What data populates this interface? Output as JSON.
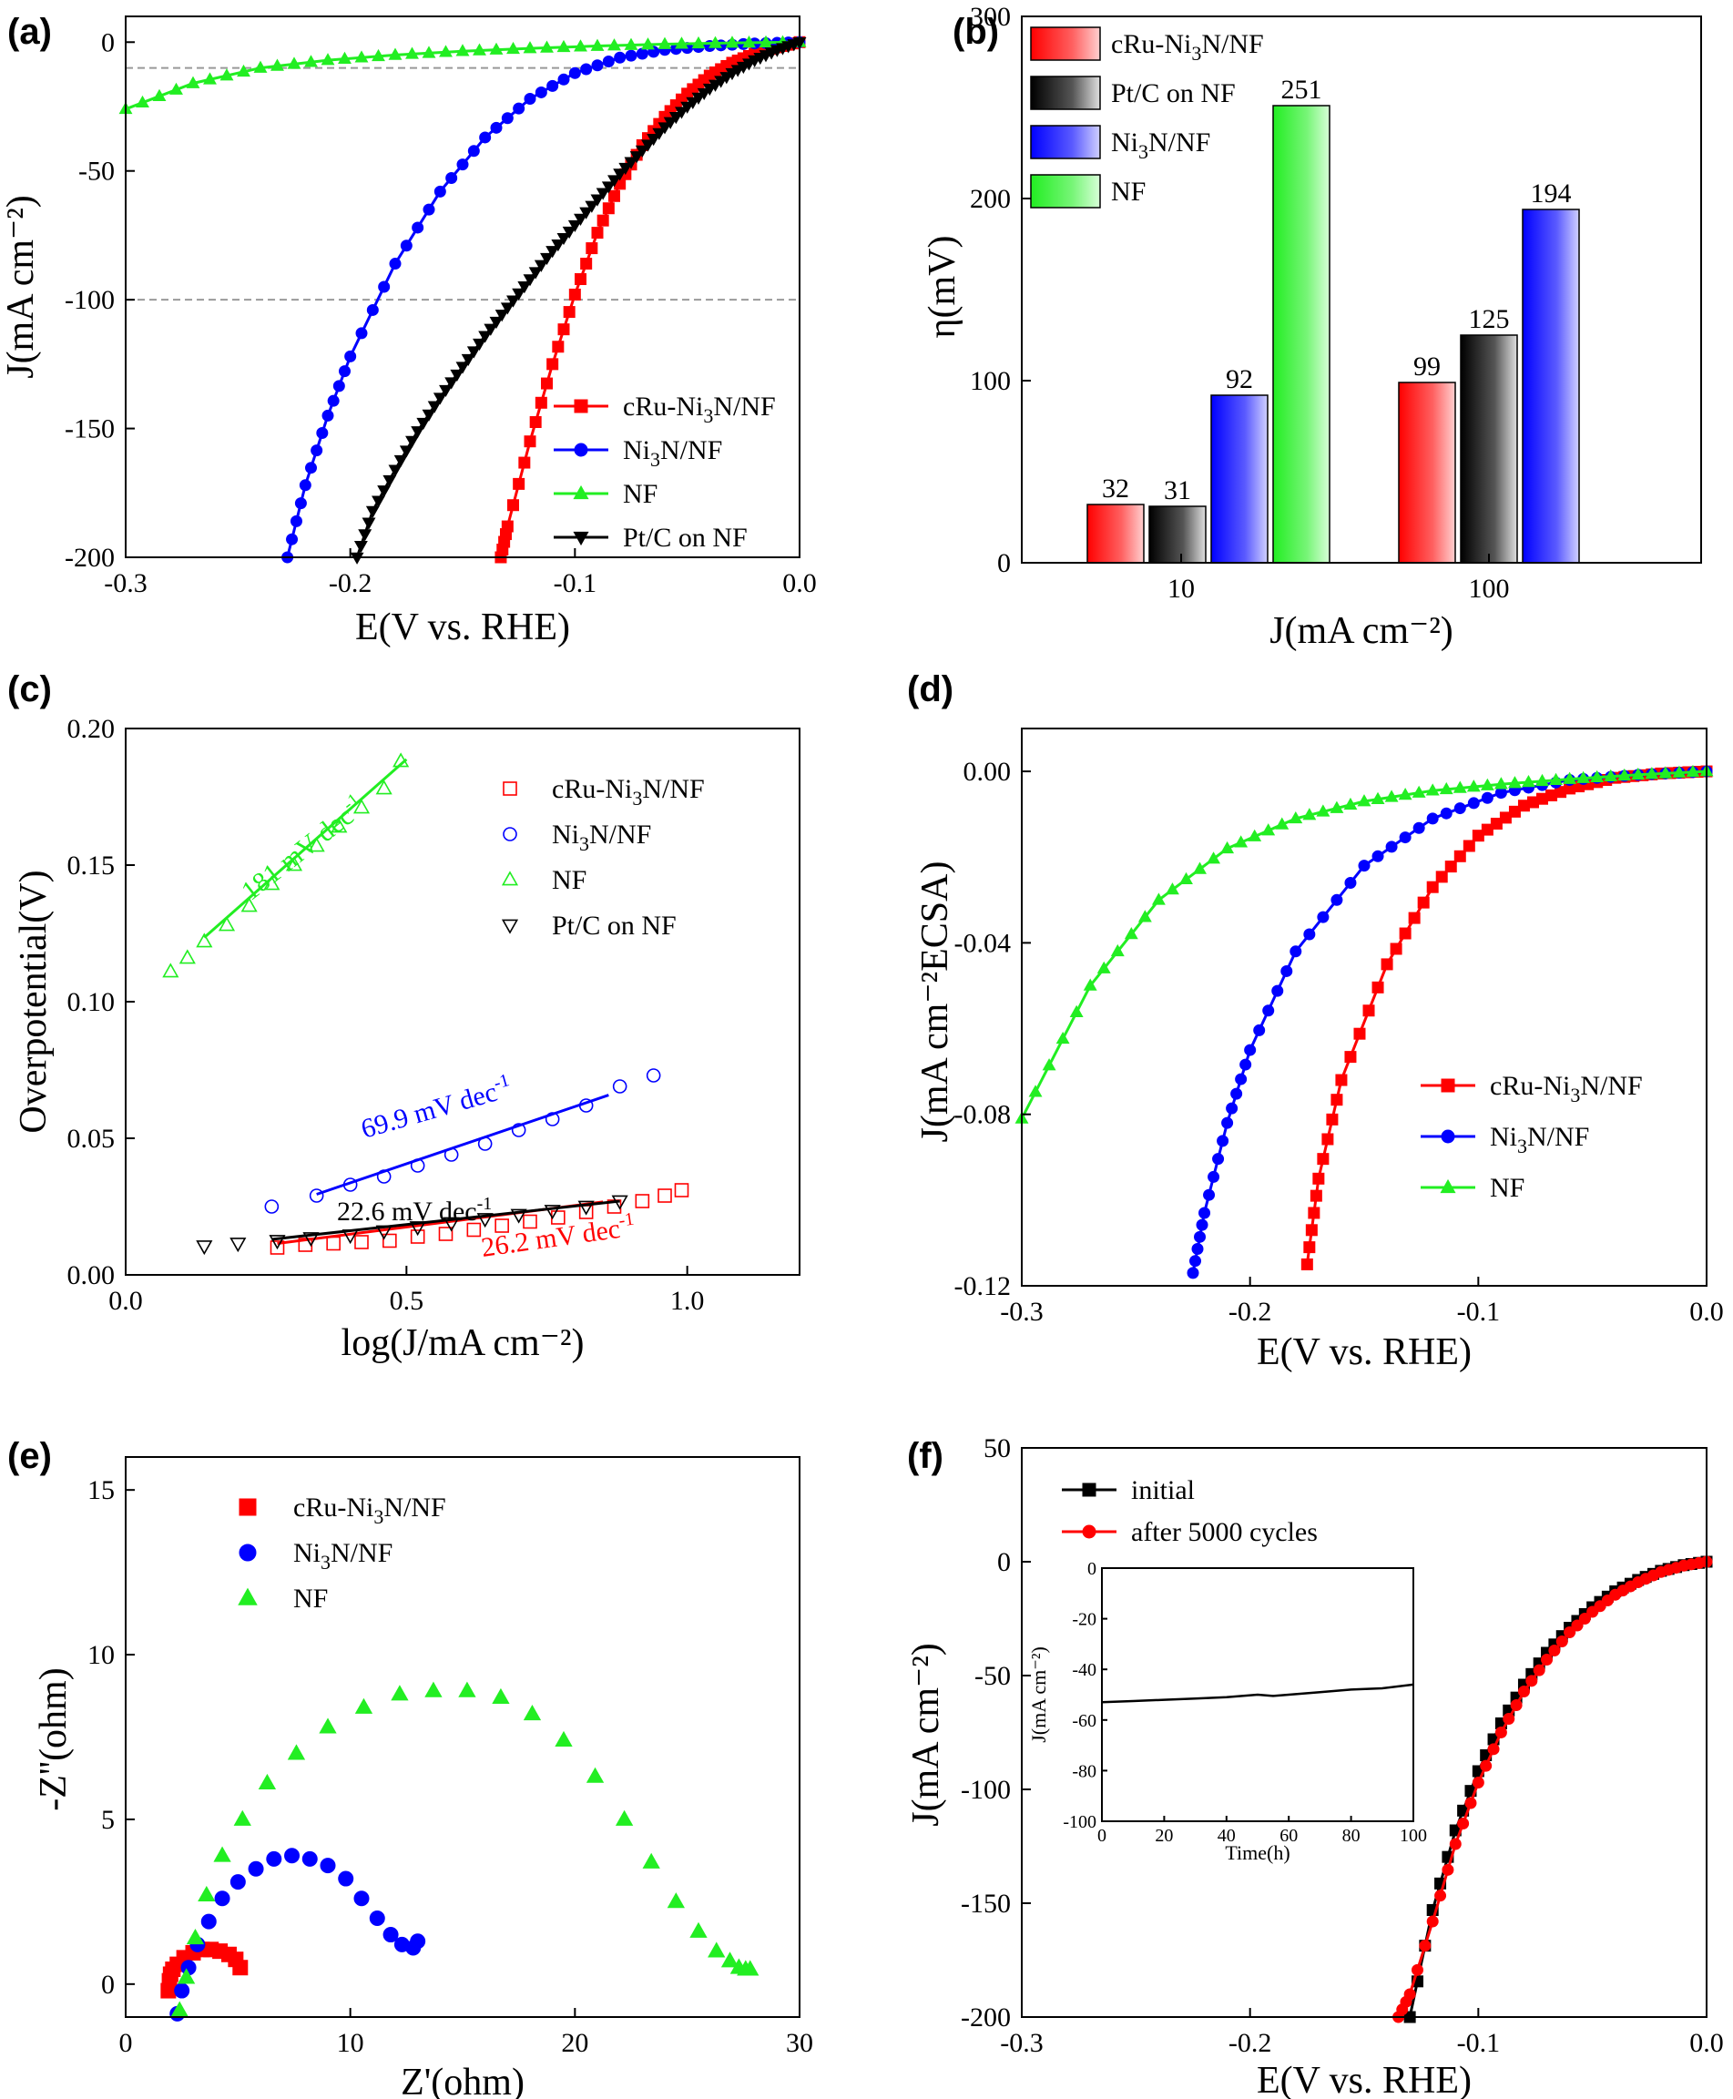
{
  "chart_data": [
    {
      "panel": "(a)",
      "type": "line",
      "xlabel": "E(V vs. RHE)",
      "ylabel": "J(mA cm⁻²)",
      "xlim": [
        -0.3,
        0.0
      ],
      "ylim": [
        -200,
        10
      ],
      "xticks": [
        -0.3,
        -0.2,
        -0.1,
        0.0
      ],
      "yticks": [
        0,
        -50,
        -100,
        -150,
        -200
      ],
      "xtick_labels": [
        "-0.3",
        "-0.2",
        "-0.1",
        "0.0"
      ],
      "ytick_labels": [
        "0",
        "-50",
        "-100",
        "-150",
        "-200"
      ],
      "reference_lines_y": [
        -10,
        -100
      ],
      "legend_position": "bottom-right",
      "series": [
        {
          "name": "cRu-Ni₃N/NF",
          "color": "#ff0000",
          "marker": "square",
          "x": [
            0.0,
            -0.01,
            -0.02,
            -0.03,
            -0.04,
            -0.05,
            -0.06,
            -0.07,
            -0.08,
            -0.09,
            -0.1,
            -0.11,
            -0.12,
            -0.13,
            -0.133
          ],
          "y": [
            0,
            -2,
            -4.5,
            -8,
            -13,
            -20,
            -29,
            -40,
            -55,
            -74,
            -98,
            -125,
            -155,
            -188,
            -200
          ]
        },
        {
          "name": "Ni₃N/NF",
          "color": "#0000ff",
          "marker": "circle",
          "x": [
            0.0,
            -0.02,
            -0.04,
            -0.06,
            -0.08,
            -0.1,
            -0.12,
            -0.14,
            -0.16,
            -0.18,
            -0.2,
            -0.21,
            -0.22,
            -0.228
          ],
          "y": [
            0,
            -0.5,
            -1.5,
            -3,
            -6,
            -12,
            -22,
            -37,
            -58,
            -86,
            -122,
            -145,
            -172,
            -200
          ]
        },
        {
          "name": "NF",
          "color": "#22ee22",
          "marker": "triangle-up",
          "x": [
            0.0,
            -0.03,
            -0.06,
            -0.09,
            -0.12,
            -0.15,
            -0.18,
            -0.21,
            -0.24,
            -0.27,
            -0.3
          ],
          "y": [
            0,
            -0.3,
            -0.8,
            -1.5,
            -2.4,
            -3.5,
            -5,
            -7,
            -10,
            -16,
            -26
          ]
        },
        {
          "name": "Pt/C on NF",
          "color": "#000000",
          "marker": "triangle-down",
          "x": [
            0.0,
            -0.01,
            -0.02,
            -0.03,
            -0.04,
            -0.05,
            -0.06,
            -0.07,
            -0.08,
            -0.09,
            -0.1,
            -0.11,
            -0.12,
            -0.13,
            -0.14,
            -0.15,
            -0.16,
            -0.17,
            -0.18,
            -0.19,
            -0.197
          ],
          "y": [
            0,
            -3,
            -7,
            -12,
            -18,
            -25,
            -33,
            -42,
            -51,
            -61,
            -71,
            -81,
            -92,
            -103,
            -114,
            -126,
            -138,
            -151,
            -166,
            -182,
            -200
          ]
        }
      ]
    },
    {
      "panel": "(b)",
      "type": "bar",
      "xlabel": "J(mA cm⁻²)",
      "ylabel": "η(mV)",
      "ylim": [
        0,
        300
      ],
      "yticks": [
        0,
        100,
        200,
        300
      ],
      "ytick_labels": [
        "0",
        "100",
        "200",
        "300"
      ],
      "categories": [
        "10",
        "100"
      ],
      "legend_position": "top-left",
      "series": [
        {
          "name": "cRu-Ni₃N/NF",
          "color": "#ff0000",
          "values": [
            32,
            99
          ],
          "labels": [
            "32",
            "99"
          ]
        },
        {
          "name": "Pt/C on NF",
          "color": "#000000",
          "values": [
            31,
            125
          ],
          "labels": [
            "31",
            "125"
          ]
        },
        {
          "name": "Ni₃N/NF",
          "color": "#0000ff",
          "values": [
            92,
            194
          ],
          "labels": [
            "92",
            "194"
          ]
        },
        {
          "name": "NF",
          "color": "#22ee22",
          "values": [
            251,
            null
          ],
          "labels": [
            "251",
            ""
          ]
        }
      ]
    },
    {
      "panel": "(c)",
      "type": "scatter",
      "xlabel": "log(J/mA cm⁻²)",
      "ylabel": "Overpotential(V)",
      "xlim": [
        0.0,
        1.2
      ],
      "ylim": [
        0.0,
        0.2
      ],
      "xticks": [
        0.0,
        0.5,
        1.0
      ],
      "xtick_labels": [
        "0.0",
        "0.5",
        "1.0"
      ],
      "yticks": [
        0.0,
        0.05,
        0.1,
        0.15,
        0.2
      ],
      "ytick_labels": [
        "0.00",
        "0.05",
        "0.10",
        "0.15",
        "0.20"
      ],
      "legend_position": "top-right",
      "series": [
        {
          "name": "cRu-Ni₃N/NF",
          "color": "#ff0000",
          "marker": "open-square",
          "x": [
            0.27,
            0.32,
            0.37,
            0.42,
            0.47,
            0.52,
            0.57,
            0.62,
            0.67,
            0.72,
            0.77,
            0.82,
            0.87,
            0.92,
            0.96,
            0.99
          ],
          "y": [
            0.01,
            0.011,
            0.0115,
            0.012,
            0.0125,
            0.014,
            0.015,
            0.0165,
            0.018,
            0.0195,
            0.021,
            0.023,
            0.025,
            0.027,
            0.029,
            0.031
          ],
          "fit": {
            "x": [
              0.27,
              0.85
            ],
            "y": [
              0.0115,
              0.0267
            ]
          }
        },
        {
          "name": "Ni₃N/NF",
          "color": "#0000ff",
          "marker": "open-circle",
          "x": [
            0.26,
            0.34,
            0.4,
            0.46,
            0.52,
            0.58,
            0.64,
            0.7,
            0.76,
            0.82,
            0.88,
            0.94
          ],
          "y": [
            0.025,
            0.029,
            0.033,
            0.036,
            0.04,
            0.044,
            0.048,
            0.053,
            0.057,
            0.062,
            0.069,
            0.073
          ],
          "fit": {
            "x": [
              0.34,
              0.86
            ],
            "y": [
              0.0295,
              0.0658
            ]
          }
        },
        {
          "name": "NF",
          "color": "#22ee22",
          "marker": "open-triangle-up",
          "x": [
            0.08,
            0.11,
            0.14,
            0.18,
            0.22,
            0.26,
            0.3,
            0.34,
            0.38,
            0.42,
            0.46,
            0.49
          ],
          "y": [
            0.111,
            0.116,
            0.122,
            0.128,
            0.135,
            0.143,
            0.15,
            0.157,
            0.164,
            0.171,
            0.178,
            0.188
          ],
          "fit": {
            "x": [
              0.14,
              0.5
            ],
            "y": [
              0.1235,
              0.1887
            ]
          }
        },
        {
          "name": "Pt/C on NF",
          "color": "#000000",
          "marker": "open-triangle-down",
          "x": [
            0.14,
            0.2,
            0.27,
            0.33,
            0.4,
            0.46,
            0.52,
            0.58,
            0.64,
            0.7,
            0.76,
            0.82,
            0.88
          ],
          "y": [
            0.0105,
            0.0115,
            0.0125,
            0.0135,
            0.0145,
            0.016,
            0.0175,
            0.019,
            0.0205,
            0.022,
            0.0235,
            0.025,
            0.027
          ],
          "fit": {
            "x": [
              0.26,
              0.88
            ],
            "y": [
              0.013,
              0.027
            ]
          }
        }
      ],
      "annotations": [
        "181 mV dec⁻¹",
        "69.9 mV dec⁻¹",
        "22.6 mV dec⁻¹",
        "26.2 mV dec⁻¹"
      ]
    },
    {
      "panel": "(d)",
      "type": "line",
      "xlabel": "E(V vs. RHE)",
      "ylabel": "J(mA cm⁻²ECSA)",
      "xlim": [
        -0.3,
        0.0
      ],
      "ylim": [
        -0.12,
        0.01
      ],
      "xticks": [
        -0.3,
        -0.2,
        -0.1,
        0.0
      ],
      "xtick_labels": [
        "-0.3",
        "-0.2",
        "-0.1",
        "0.0"
      ],
      "yticks": [
        0.0,
        -0.04,
        -0.08,
        -0.12
      ],
      "ytick_labels": [
        "0.00",
        "-0.04",
        "-0.08",
        "-0.12"
      ],
      "legend_position": "bottom-right",
      "series": [
        {
          "name": "cRu-Ni₃N/NF",
          "color": "#ff0000",
          "marker": "square",
          "x": [
            0.0,
            -0.02,
            -0.04,
            -0.06,
            -0.08,
            -0.1,
            -0.12,
            -0.14,
            -0.16,
            -0.17,
            -0.175
          ],
          "y": [
            0,
            -0.0005,
            -0.0015,
            -0.004,
            -0.008,
            -0.015,
            -0.027,
            -0.045,
            -0.072,
            -0.095,
            -0.115
          ]
        },
        {
          "name": "Ni₃N/NF",
          "color": "#0000ff",
          "marker": "circle",
          "x": [
            0.0,
            -0.03,
            -0.06,
            -0.09,
            -0.12,
            -0.15,
            -0.18,
            -0.2,
            -0.21,
            -0.22,
            -0.225
          ],
          "y": [
            0,
            -0.0008,
            -0.002,
            -0.005,
            -0.011,
            -0.022,
            -0.042,
            -0.065,
            -0.082,
            -0.103,
            -0.117
          ]
        },
        {
          "name": "NF",
          "color": "#22ee22",
          "marker": "triangle-up",
          "x": [
            0.0,
            -0.03,
            -0.06,
            -0.09,
            -0.12,
            -0.15,
            -0.18,
            -0.21,
            -0.24,
            -0.27,
            -0.3
          ],
          "y": [
            0,
            -0.0008,
            -0.0018,
            -0.003,
            -0.0045,
            -0.007,
            -0.011,
            -0.018,
            -0.03,
            -0.05,
            -0.081
          ]
        }
      ]
    },
    {
      "panel": "(e)",
      "type": "scatter",
      "xlabel": "Z'(ohm)",
      "ylabel": "-Z''(ohm)",
      "xlim": [
        0,
        30
      ],
      "ylim": [
        -1,
        16
      ],
      "xticks": [
        0,
        10,
        20,
        30
      ],
      "xtick_labels": [
        "0",
        "10",
        "20",
        "30"
      ],
      "yticks": [
        0,
        5,
        10,
        15
      ],
      "ytick_labels": [
        "0",
        "5",
        "10",
        "15"
      ],
      "legend_position": "top-left",
      "series": [
        {
          "name": "cRu-Ni₃N/NF",
          "color": "#ff0000",
          "marker": "filled-square",
          "x": [
            1.9,
            1.95,
            2.0,
            2.1,
            2.3,
            2.6,
            3.0,
            3.4,
            3.8,
            4.2,
            4.6,
            4.9,
            5.1
          ],
          "y": [
            -0.2,
            0.1,
            0.3,
            0.45,
            0.6,
            0.8,
            0.95,
            1.05,
            1.05,
            1.0,
            0.9,
            0.75,
            0.5
          ]
        },
        {
          "name": "Ni₃N/NF",
          "color": "#0000ff",
          "marker": "filled-circle",
          "x": [
            2.3,
            2.5,
            2.8,
            3.2,
            3.7,
            4.3,
            5.0,
            5.8,
            6.6,
            7.4,
            8.2,
            9.0,
            9.8,
            10.5,
            11.2,
            11.8,
            12.3,
            12.8,
            13.0
          ],
          "y": [
            -0.9,
            -0.2,
            0.5,
            1.2,
            1.9,
            2.6,
            3.1,
            3.5,
            3.8,
            3.9,
            3.8,
            3.6,
            3.2,
            2.6,
            2.0,
            1.5,
            1.2,
            1.1,
            1.3
          ]
        },
        {
          "name": "NF",
          "color": "#22ee22",
          "marker": "filled-triangle-up",
          "x": [
            2.4,
            2.7,
            3.1,
            3.6,
            4.3,
            5.2,
            6.3,
            7.6,
            9.0,
            10.6,
            12.2,
            13.7,
            15.2,
            16.7,
            18.1,
            19.5,
            20.9,
            22.2,
            23.4,
            24.5,
            25.5,
            26.3,
            26.9,
            27.3,
            27.6,
            27.8
          ],
          "y": [
            -0.8,
            0.2,
            1.4,
            2.7,
            3.9,
            5.0,
            6.1,
            7.0,
            7.8,
            8.4,
            8.8,
            8.9,
            8.9,
            8.7,
            8.2,
            7.4,
            6.3,
            5.0,
            3.7,
            2.5,
            1.6,
            1.0,
            0.7,
            0.5,
            0.45,
            0.45
          ]
        }
      ]
    },
    {
      "panel": "(f)",
      "type": "line",
      "xlabel": "E(V vs. RHE)",
      "ylabel": "J(mA cm⁻²)",
      "xlim": [
        -0.3,
        0.0
      ],
      "ylim": [
        -200,
        50
      ],
      "xticks": [
        -0.3,
        -0.2,
        -0.1,
        0.0
      ],
      "xtick_labels": [
        "-0.3",
        "-0.2",
        "-0.1",
        "0.0"
      ],
      "yticks": [
        50,
        0,
        -50,
        -100,
        -150,
        -200
      ],
      "ytick_labels": [
        "50",
        "0",
        "-50",
        "-100",
        "-150",
        "-200"
      ],
      "legend_position": "top-left",
      "series": [
        {
          "name": "initial",
          "color": "#000000",
          "marker": "square",
          "x": [
            0.0,
            -0.01,
            -0.02,
            -0.03,
            -0.04,
            -0.05,
            -0.06,
            -0.07,
            -0.08,
            -0.09,
            -0.1,
            -0.11,
            -0.12,
            -0.13
          ],
          "y": [
            0,
            -1.5,
            -4,
            -8,
            -13,
            -20,
            -29,
            -40,
            -54,
            -71,
            -92,
            -118,
            -153,
            -200
          ]
        },
        {
          "name": "after 5000 cycles",
          "color": "#ff0000",
          "marker": "circle",
          "x": [
            0.0,
            -0.01,
            -0.02,
            -0.03,
            -0.04,
            -0.05,
            -0.06,
            -0.07,
            -0.08,
            -0.09,
            -0.1,
            -0.11,
            -0.12,
            -0.13,
            -0.135
          ],
          "y": [
            0,
            -1.7,
            -4.5,
            -9,
            -14.5,
            -22,
            -31,
            -43,
            -57,
            -75,
            -97,
            -124,
            -158,
            -190,
            -200
          ]
        }
      ],
      "inset": {
        "type": "line",
        "xlabel": "Time(h)",
        "ylabel": "J(mA cm⁻²)",
        "xlim": [
          0,
          100
        ],
        "ylim": [
          -100,
          0
        ],
        "xticks": [
          0,
          20,
          40,
          60,
          80,
          100
        ],
        "xtick_labels": [
          "0",
          "20",
          "40",
          "60",
          "80",
          "100"
        ],
        "yticks": [
          0,
          -20,
          -40,
          -60,
          -80,
          -100
        ],
        "ytick_labels": [
          "0",
          "-20",
          "-40",
          "-60",
          "-80",
          "-100"
        ],
        "series": [
          {
            "color": "#000000",
            "x": [
              0,
              10,
              20,
              30,
              40,
              50,
              55,
              60,
              70,
              80,
              90,
              100
            ],
            "y": [
              -53,
              -52.5,
              -52,
              -51.5,
              -51,
              -50,
              -50.5,
              -50,
              -49,
              -48,
              -47.5,
              -46
            ]
          }
        ]
      }
    }
  ]
}
